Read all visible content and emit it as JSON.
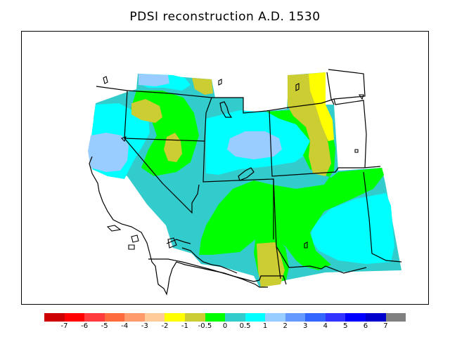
{
  "title": "PDSI reconstruction A.D. 1530",
  "legend": {
    "colors": [
      "#cc0000",
      "#ff0000",
      "#ff3b3b",
      "#ff6a3d",
      "#ff9a6a",
      "#ffcc99",
      "#ffff00",
      "#cccc33",
      "#00ff00",
      "#33cccc",
      "#00ffff",
      "#99ccff",
      "#6699ff",
      "#3366ff",
      "#3333ff",
      "#0000ff",
      "#0000cc",
      "#808080"
    ],
    "labels": [
      "-7",
      "-6",
      "-5",
      "-4",
      "-3",
      "-2",
      "-1",
      "-0.5",
      "0",
      "0.5",
      "1",
      "2",
      "3",
      "4",
      "5",
      "6",
      "7"
    ]
  },
  "map_colors": {
    "dark_yellow": "#cccc33",
    "yellow": "#ffff00",
    "green": "#00ff00",
    "teal": "#33cccc",
    "cyan": "#00ffff",
    "light_blue": "#99ccff"
  }
}
